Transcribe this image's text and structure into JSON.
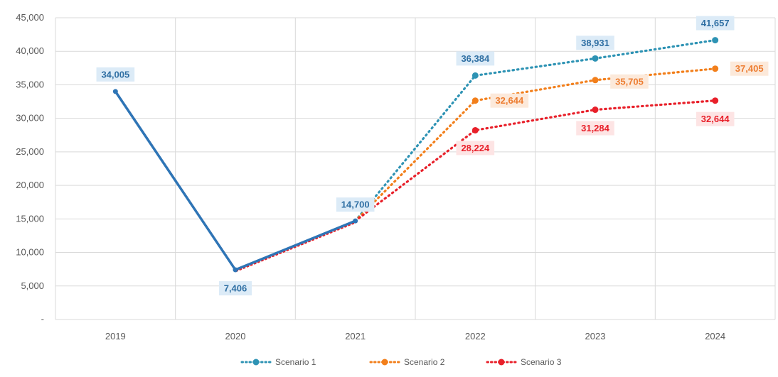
{
  "chart_data": {
    "type": "line",
    "categories": [
      "2019",
      "2020",
      "2021",
      "2022",
      "2023",
      "2024"
    ],
    "y_ticks": [
      "-",
      "5,000",
      "10,000",
      "15,000",
      "20,000",
      "25,000",
      "30,000",
      "35,000",
      "40,000",
      "45,000"
    ],
    "ylim": [
      0,
      45000
    ],
    "grid": true,
    "legend_position": "bottom",
    "actual": {
      "color": "#2E75B6",
      "values": [
        34005,
        7406,
        14700
      ],
      "labels": [
        "34,005",
        "7,406",
        "14,700"
      ]
    },
    "series": [
      {
        "name": "Scenario 1",
        "color": "#2E93B4",
        "label_color": "#2F6FA3",
        "label_bg": "#DCEBF7",
        "values": [
          null,
          null,
          14700,
          36384,
          38931,
          41657
        ],
        "labels": [
          "",
          "",
          "",
          "36,384",
          "38,931",
          "41,657"
        ]
      },
      {
        "name": "Scenario 2",
        "color": "#F27F1B",
        "label_color": "#ED7D31",
        "label_bg": "#FCE9DA",
        "values": [
          null,
          null,
          14700,
          32644,
          35705,
          37405
        ],
        "labels": [
          "",
          "",
          "",
          "32,644",
          "35,705",
          "37,405"
        ]
      },
      {
        "name": "Scenario 3",
        "color": "#E8202A",
        "label_color": "#E8202A",
        "label_bg": "#FDE4E4",
        "values": [
          null,
          null,
          14700,
          28224,
          31284,
          32644
        ],
        "labels": [
          "",
          "",
          "",
          "28,224",
          "31,284",
          "32,644"
        ]
      }
    ]
  }
}
